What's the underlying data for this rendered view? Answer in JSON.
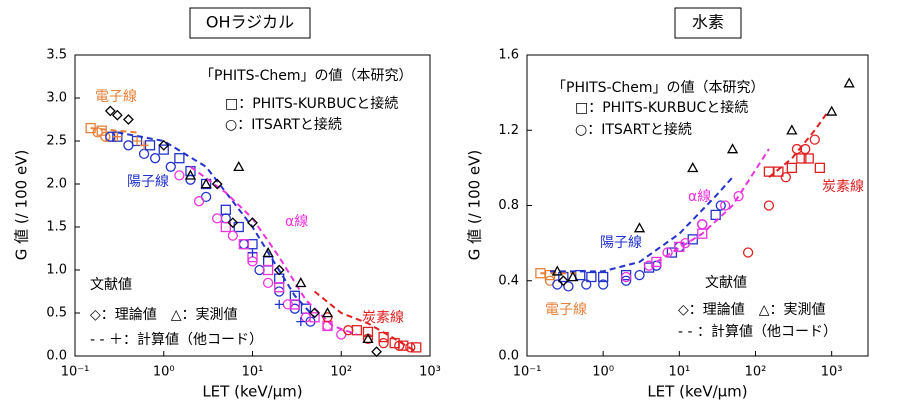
{
  "chart_data": [
    {
      "type": "scatter",
      "title": "OHラジカル",
      "xlabel": "LET (keV/μm)",
      "ylabel": "G 値 (/ 100 eV)",
      "log_x": true,
      "xlim": [
        0.1,
        1000
      ],
      "xticks": [
        {
          "value": 0.1,
          "label": "10⁻¹"
        },
        {
          "value": 1,
          "label": "10⁰"
        },
        {
          "value": 10,
          "label": "10¹"
        },
        {
          "value": 100,
          "label": "10²"
        },
        {
          "value": 1000,
          "label": "10³"
        }
      ],
      "ylim": [
        0,
        3.5
      ],
      "yticks": [
        {
          "value": 0,
          "label": "0.0"
        },
        0.5,
        {
          "value": 1,
          "label": "1.0"
        },
        1.5,
        {
          "value": 2,
          "label": "2.0"
        },
        2.5,
        {
          "value": 3,
          "label": "3.0"
        },
        3.5
      ],
      "legend_lines": [
        "「PHITS-Chem」の値（本研究）",
        "□：PHITS-KURBUCと接続",
        "○：ITSARTと接続",
        "文献値",
        "◇：理論値　△：実測値",
        "- - ＋：計算値（他コード）"
      ],
      "annotations": [
        {
          "text": "電子線",
          "color": "#e8803a"
        },
        {
          "text": "陽子線",
          "color": "#2233cc"
        },
        {
          "text": "α線",
          "color": "#ee33dd"
        },
        {
          "text": "炭素線",
          "color": "#e02020"
        }
      ],
      "series": [
        {
          "marker": "square",
          "color": "#e8803a",
          "x": [
            0.15,
            0.2,
            0.25
          ],
          "values": [
            2.65,
            2.62,
            2.55
          ]
        },
        {
          "marker": "circle",
          "color": "#e8803a",
          "x": [
            0.18,
            0.22
          ],
          "values": [
            2.6,
            2.55
          ]
        },
        {
          "marker": "square",
          "color": "#2233cc",
          "x": [
            0.3,
            0.5,
            0.7,
            1,
            1.5,
            2,
            3,
            5,
            7,
            10,
            15,
            20,
            30,
            40
          ],
          "values": [
            2.55,
            2.5,
            2.45,
            2.4,
            2.3,
            2.15,
            2.0,
            1.7,
            1.5,
            1.3,
            1.1,
            0.9,
            0.7,
            0.55
          ]
        },
        {
          "marker": "circle",
          "color": "#2233cc",
          "x": [
            0.25,
            0.4,
            0.6,
            0.8,
            1.2,
            2,
            3,
            5,
            8,
            12,
            20,
            30,
            45
          ],
          "values": [
            2.55,
            2.45,
            2.35,
            2.3,
            2.2,
            2.05,
            1.85,
            1.6,
            1.3,
            1.0,
            0.75,
            0.55,
            0.4
          ]
        },
        {
          "marker": "square",
          "color": "#ee33dd",
          "x": [
            5,
            8,
            10,
            15,
            20,
            30,
            50,
            70
          ],
          "values": [
            1.5,
            1.3,
            1.15,
            1.0,
            0.8,
            0.6,
            0.45,
            0.35
          ]
        },
        {
          "marker": "circle",
          "color": "#ee33dd",
          "x": [
            1.5,
            2.5,
            4,
            6,
            10,
            15,
            25,
            40,
            70,
            100
          ],
          "values": [
            2.1,
            1.8,
            1.6,
            1.4,
            1.1,
            0.85,
            0.6,
            0.45,
            0.35,
            0.25
          ]
        },
        {
          "marker": "square",
          "color": "#e02020",
          "x": [
            150,
            200,
            300,
            400,
            500,
            700
          ],
          "values": [
            0.3,
            0.28,
            0.22,
            0.15,
            0.12,
            0.1
          ]
        },
        {
          "marker": "circle",
          "color": "#e02020",
          "x": [
            70,
            120,
            200,
            300,
            450,
            600
          ],
          "values": [
            0.45,
            0.3,
            0.2,
            0.15,
            0.12,
            0.1
          ]
        },
        {
          "marker": "dash",
          "color": "#e8803a",
          "x": [
            0.15,
            0.3,
            0.5
          ],
          "values": [
            2.65,
            2.62,
            2.6
          ]
        },
        {
          "marker": "dash",
          "color": "#2233cc",
          "x": [
            0.3,
            1,
            3,
            10,
            30,
            50
          ],
          "values": [
            2.6,
            2.5,
            2.2,
            1.5,
            0.7,
            0.45
          ]
        },
        {
          "marker": "dash",
          "color": "#ee33dd",
          "x": [
            2,
            5,
            10,
            20,
            40,
            80,
            150
          ],
          "values": [
            2.2,
            1.9,
            1.6,
            1.15,
            0.65,
            0.35,
            0.25
          ]
        },
        {
          "marker": "dash",
          "color": "#e02020",
          "x": [
            50,
            100,
            200,
            400,
            700
          ],
          "values": [
            0.75,
            0.5,
            0.38,
            0.2,
            0.05
          ]
        },
        {
          "marker": "diamond",
          "color": "#000000",
          "x": [
            0.25,
            0.3,
            0.4,
            1,
            4,
            6,
            10,
            20,
            50,
            250
          ],
          "values": [
            2.85,
            2.8,
            2.75,
            2.45,
            2.0,
            1.55,
            1.55,
            1.0,
            0.5,
            0.05
          ]
        },
        {
          "marker": "triangle",
          "color": "#000000",
          "x": [
            2,
            3,
            7,
            15,
            35,
            70,
            200
          ],
          "values": [
            2.1,
            2.0,
            2.2,
            1.2,
            0.85,
            0.5,
            0.2
          ]
        },
        {
          "marker": "plus",
          "color": "#e8803a",
          "x": [
            0.3,
            0.5,
            0.6
          ],
          "values": [
            2.55,
            2.5,
            2.45
          ]
        },
        {
          "marker": "plus",
          "color": "#2233cc",
          "x": [
            10,
            20,
            35
          ],
          "values": [
            1.2,
            0.6,
            0.4
          ]
        }
      ]
    },
    {
      "type": "scatter",
      "title": "水素",
      "xlabel": "LET (keV/μm)",
      "ylabel": "G 値 (/ 100 eV)",
      "log_x": true,
      "xlim": [
        0.1,
        3000
      ],
      "xticks": [
        {
          "value": 0.1,
          "label": "10⁻¹"
        },
        {
          "value": 1,
          "label": "10⁰"
        },
        {
          "value": 10,
          "label": "10¹"
        },
        {
          "value": 100,
          "label": "10²"
        },
        {
          "value": 1000,
          "label": "10³"
        }
      ],
      "ylim": [
        0,
        1.6
      ],
      "yticks": [
        {
          "value": 0,
          "label": "0.0"
        },
        0.4,
        0.8,
        1.2,
        1.6
      ],
      "legend_lines": [
        "「PHITS-Chem」の値（本研究）",
        "□：PHITS-KURBUCと接続",
        "○：ITSARTと接続",
        "文献値",
        "◇：理論値　△：実測値",
        "- - ：計算値（他コード）"
      ],
      "annotations": [
        {
          "text": "電子線",
          "color": "#e8803a"
        },
        {
          "text": "陽子線",
          "color": "#2233cc"
        },
        {
          "text": "α線",
          "color": "#ee33dd"
        },
        {
          "text": "炭素線",
          "color": "#e02020"
        }
      ],
      "series": [
        {
          "marker": "square",
          "color": "#e8803a",
          "x": [
            0.15,
            0.2
          ],
          "values": [
            0.44,
            0.43
          ]
        },
        {
          "marker": "circle",
          "color": "#e8803a",
          "x": [
            0.2
          ],
          "values": [
            0.4
          ]
        },
        {
          "marker": "square",
          "color": "#2233cc",
          "x": [
            0.3,
            0.5,
            0.7,
            1,
            2,
            4,
            8,
            15,
            30
          ],
          "values": [
            0.42,
            0.43,
            0.42,
            0.42,
            0.43,
            0.47,
            0.55,
            0.62,
            0.75
          ]
        },
        {
          "marker": "circle",
          "color": "#2233cc",
          "x": [
            0.25,
            0.35,
            0.6,
            1,
            2,
            3,
            5,
            10,
            20,
            35
          ],
          "values": [
            0.38,
            0.37,
            0.38,
            0.38,
            0.4,
            0.43,
            0.48,
            0.58,
            0.7,
            0.8
          ]
        },
        {
          "marker": "square",
          "color": "#ee33dd",
          "x": [
            5,
            10,
            20
          ],
          "values": [
            0.5,
            0.58,
            0.65
          ]
        },
        {
          "marker": "circle",
          "color": "#ee33dd",
          "x": [
            2,
            4,
            7,
            12,
            20,
            40,
            60
          ],
          "values": [
            0.42,
            0.48,
            0.55,
            0.6,
            0.7,
            0.8,
            0.85
          ]
        },
        {
          "marker": "square",
          "color": "#e02020",
          "x": [
            150,
            200,
            300,
            400,
            500,
            700
          ],
          "values": [
            0.98,
            0.98,
            1.0,
            1.05,
            1.05,
            1.0
          ]
        },
        {
          "marker": "circle",
          "color": "#e02020",
          "x": [
            80,
            150,
            250,
            350,
            450,
            600
          ],
          "values": [
            0.55,
            0.8,
            0.95,
            1.1,
            1.1,
            1.15
          ]
        },
        {
          "marker": "dash",
          "color": "#e8803a",
          "x": [
            0.15,
            0.5
          ],
          "values": [
            0.44,
            0.44
          ]
        },
        {
          "marker": "dash",
          "color": "#2233cc",
          "x": [
            0.2,
            1,
            3,
            10,
            30,
            50
          ],
          "values": [
            0.45,
            0.45,
            0.5,
            0.65,
            0.85,
            0.95
          ]
        },
        {
          "marker": "dash",
          "color": "#ee33dd",
          "x": [
            5,
            20,
            50,
            150
          ],
          "values": [
            0.5,
            0.65,
            0.8,
            1.1
          ]
        },
        {
          "marker": "dash",
          "color": "#e02020",
          "x": [
            150,
            300,
            600,
            900
          ],
          "values": [
            0.95,
            1.05,
            1.2,
            1.3
          ]
        },
        {
          "marker": "diamond",
          "color": "#000000",
          "x": [
            0.3
          ],
          "values": [
            0.4
          ]
        },
        {
          "marker": "triangle",
          "color": "#000000",
          "x": [
            0.25,
            0.4,
            3,
            15,
            50,
            300,
            1000,
            1700
          ],
          "values": [
            0.45,
            0.42,
            0.68,
            1.0,
            1.1,
            1.2,
            1.3,
            1.45
          ]
        }
      ]
    }
  ]
}
